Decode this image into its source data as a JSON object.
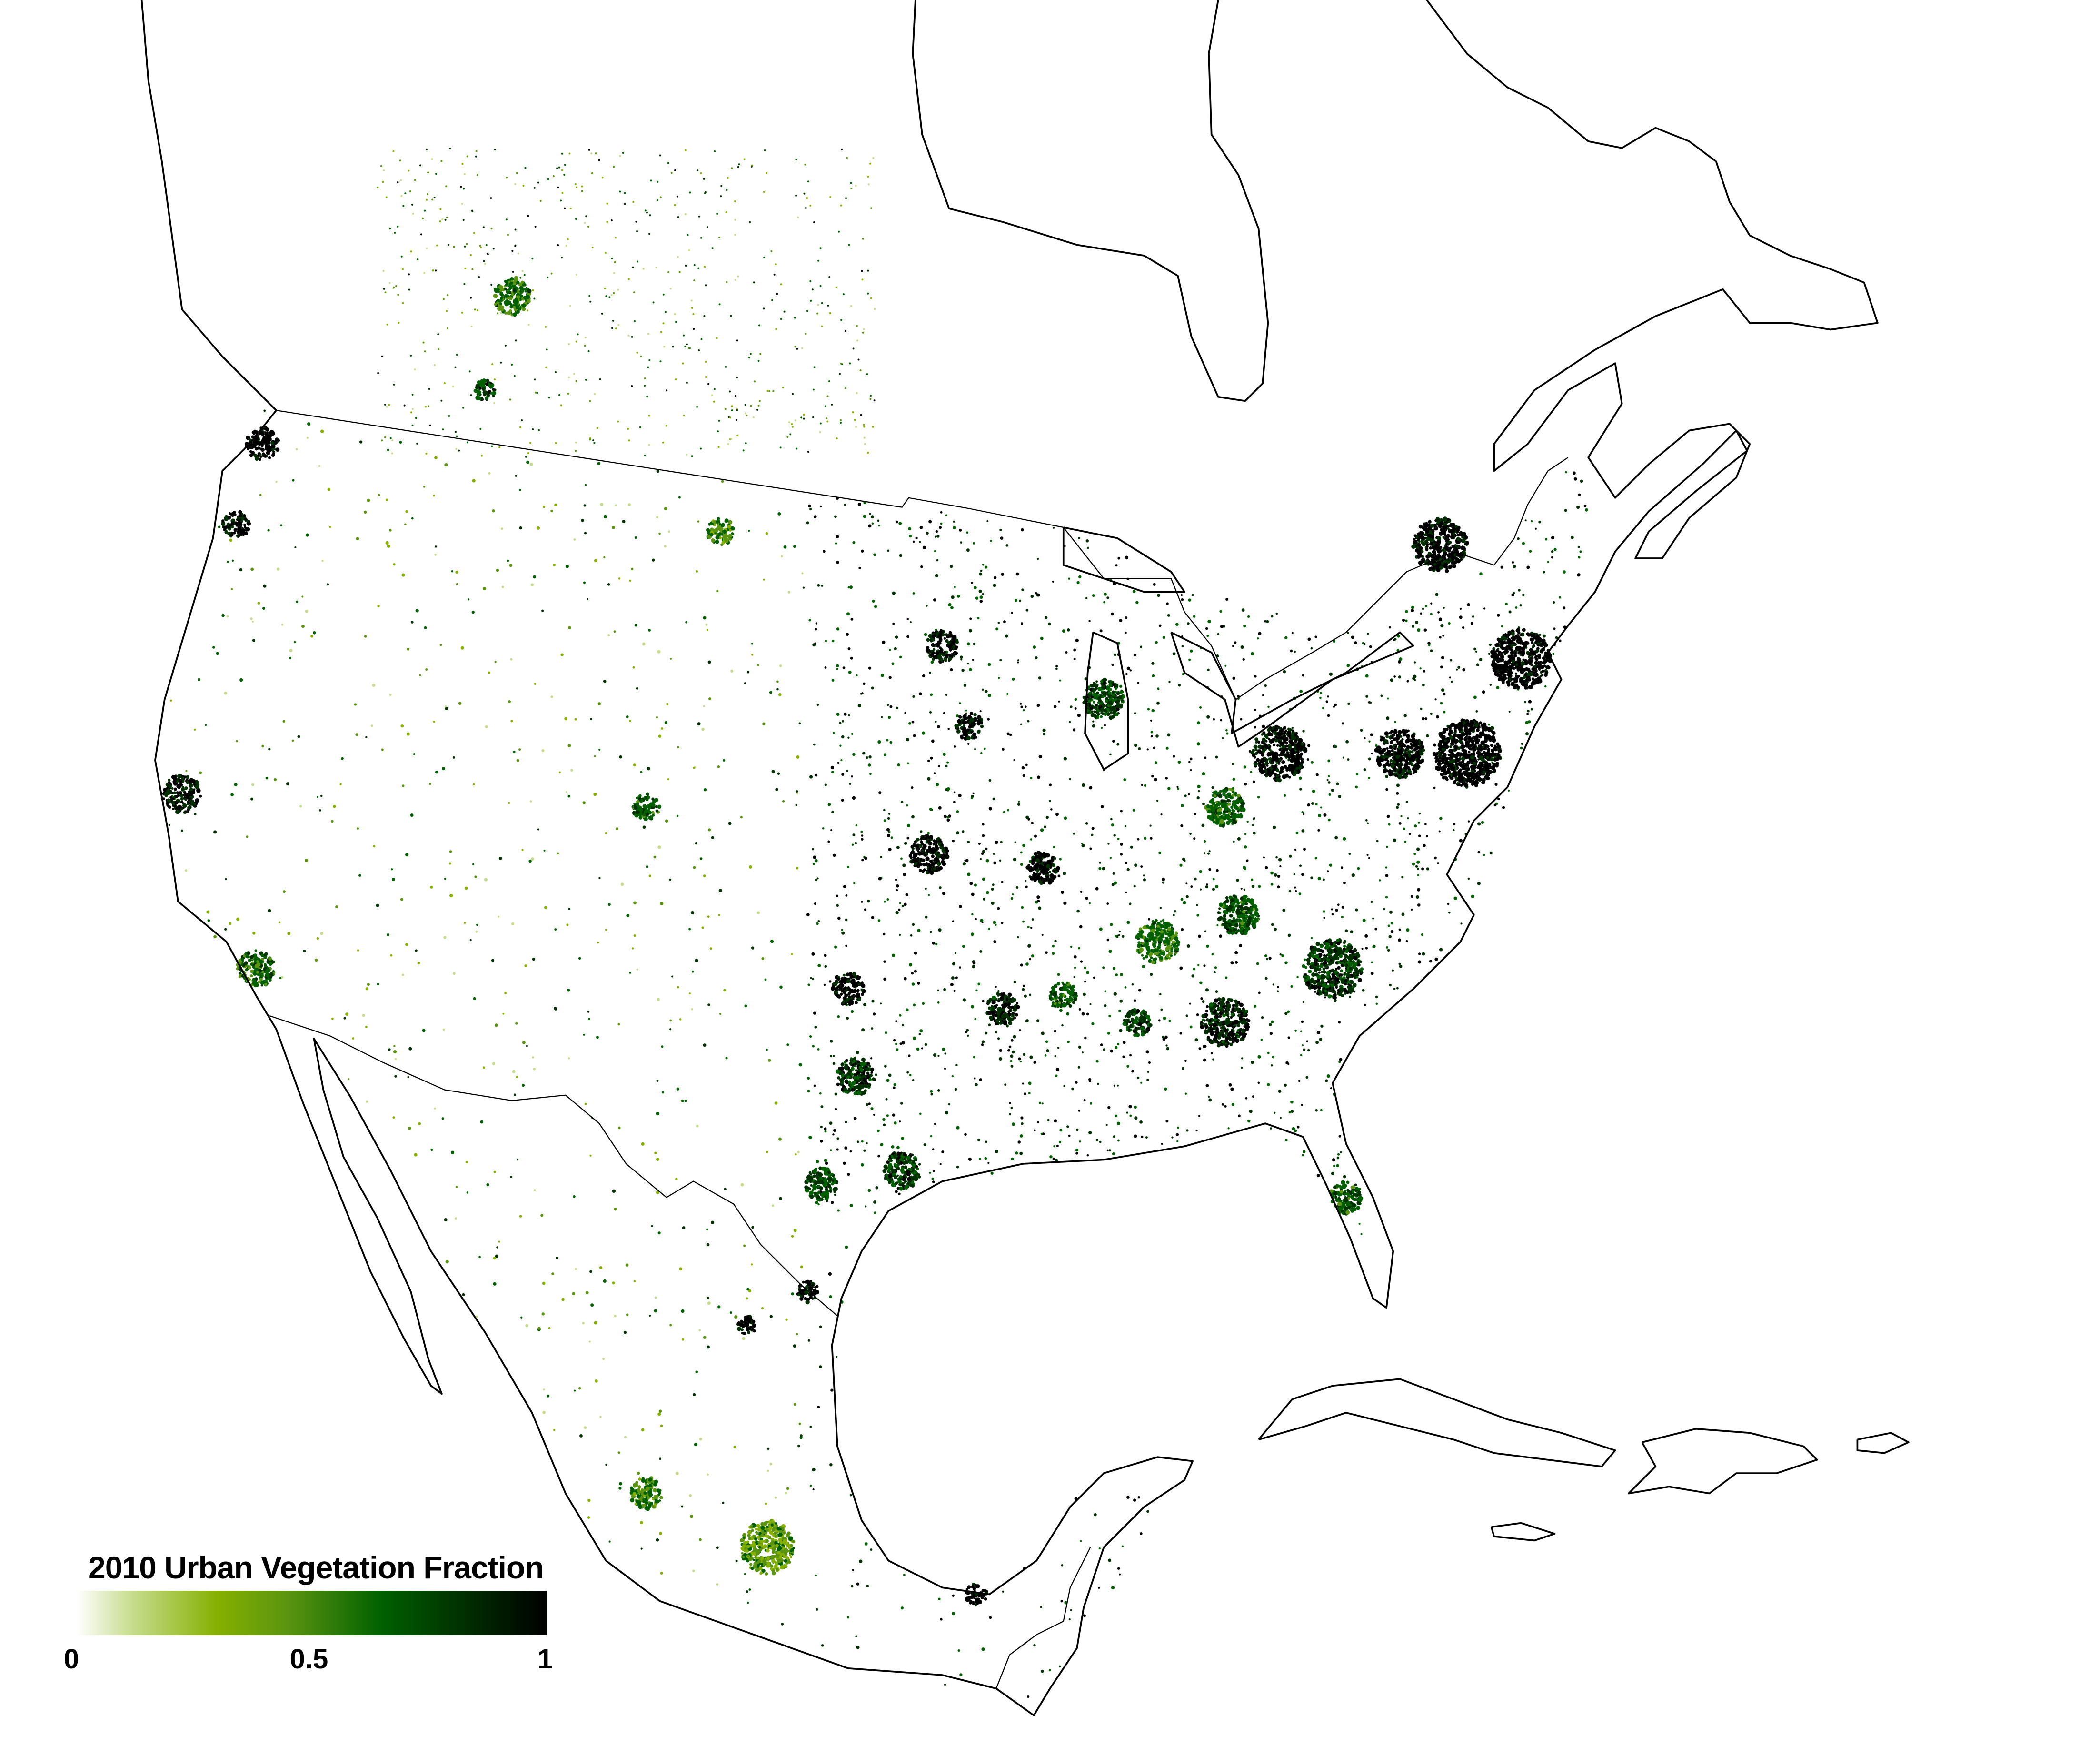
{
  "legend": {
    "title": "2010 Urban Vegetation Fraction",
    "ticks": [
      "0",
      "0.5",
      "1"
    ],
    "range": [
      0,
      1
    ],
    "colormap": [
      "#ffffff",
      "#c6dc8c",
      "#85b000",
      "#5a9410",
      "#006000",
      "#003000",
      "#000000"
    ]
  },
  "map": {
    "region": "North America",
    "outline_color": "#000000",
    "background": "#ffffff"
  }
}
